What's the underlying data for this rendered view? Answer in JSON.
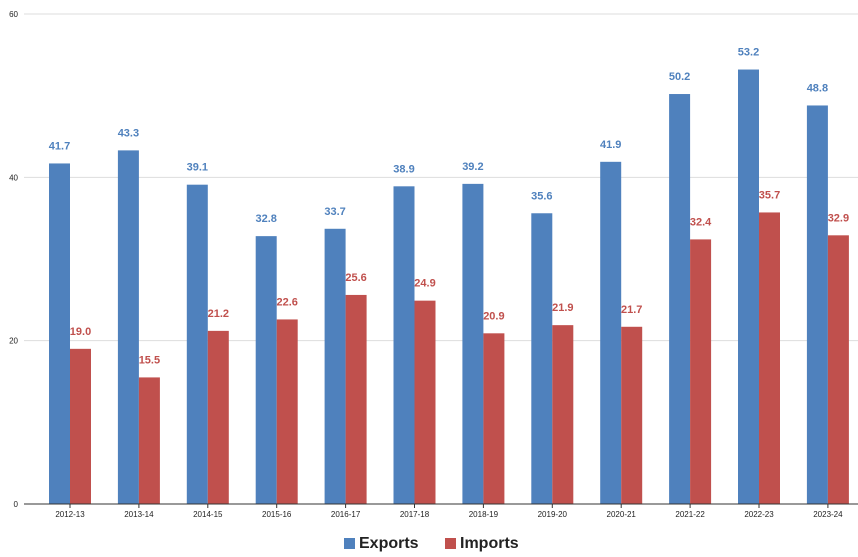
{
  "chart_data": {
    "type": "bar",
    "categories": [
      "2012-13",
      "2013-14",
      "2014-15",
      "2015-16",
      "2016-17",
      "2017-18",
      "2018-19",
      "2019-20",
      "2020-21",
      "2021-22",
      "2022-23",
      "2023-24"
    ],
    "series": [
      {
        "name": "Exports",
        "color": "#4f81bd",
        "values": [
          41.7,
          43.3,
          39.1,
          32.8,
          33.7,
          38.9,
          39.2,
          35.6,
          41.9,
          50.2,
          53.2,
          48.8
        ],
        "labels": [
          "41.7",
          "43.3",
          "39.1",
          "32.8",
          "33.7",
          "38.9",
          "39.2",
          "35.6",
          "41.9",
          "50.2",
          "53.2",
          "48.8"
        ]
      },
      {
        "name": "Imports",
        "color": "#c0504d",
        "values": [
          19.0,
          15.5,
          21.2,
          22.6,
          25.6,
          24.9,
          20.9,
          21.9,
          21.7,
          32.4,
          35.7,
          32.9
        ],
        "labels": [
          "19.0",
          "15.5",
          "21.2",
          "22.6",
          "25.6",
          "24.9",
          "20.9",
          "21.9",
          "21.7",
          "32.4",
          "35.7",
          "32.9"
        ]
      }
    ],
    "ylim": [
      0,
      60
    ],
    "yticks": [
      0,
      20,
      40,
      60
    ],
    "ytick_labels": [
      "0",
      "20",
      "40",
      "60"
    ],
    "grid": true,
    "legend": "bottom-center",
    "label_color_exports": "#4f81bd",
    "label_color_imports": "#c0504d",
    "gridline_color": "#dddddd",
    "axis_color": "#333333"
  }
}
